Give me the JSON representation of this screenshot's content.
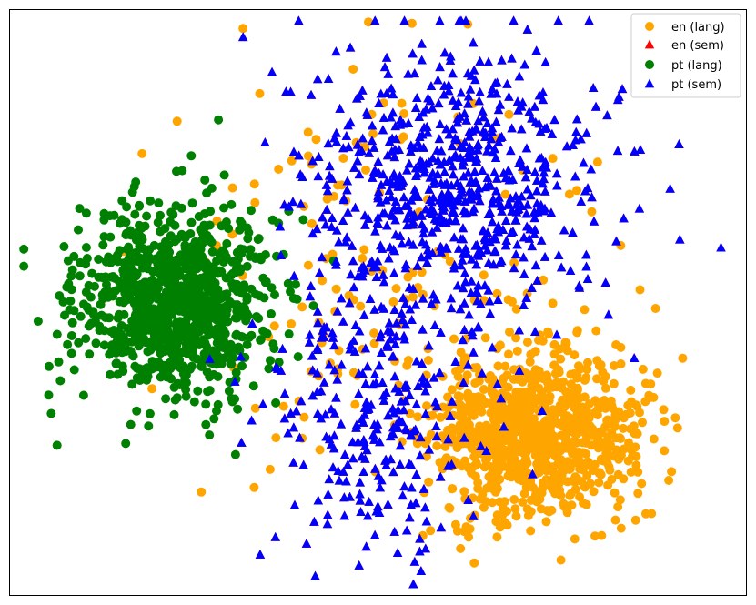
{
  "chart_data": {
    "type": "scatter",
    "title": "",
    "xlabel": "",
    "ylabel": "",
    "axes_ticks": false,
    "grid": false,
    "legend_placement": "top-right",
    "xlim": [
      0,
      100
    ],
    "ylim": [
      0,
      100
    ],
    "series": [
      {
        "name": "en (lang)",
        "marker": "circle",
        "color": "#FFA500",
        "clusters": [
          {
            "cx": 71,
            "cy": 28,
            "sx": 7,
            "sy": 7,
            "n": 950,
            "seed": 11
          },
          {
            "cx": 50,
            "cy": 55,
            "sx": 14,
            "sy": 18,
            "n": 160,
            "seed": 12
          }
        ]
      },
      {
        "name": "en (sem)",
        "marker": "triangle",
        "color": "#FF0000",
        "clusters": [
          {
            "cx": 60,
            "cy": 70,
            "sx": 10,
            "sy": 12,
            "n": 700,
            "seed": 21
          },
          {
            "cx": 49,
            "cy": 32,
            "sx": 7,
            "sy": 12,
            "n": 280,
            "seed": 22
          }
        ]
      },
      {
        "name": "pt (lang)",
        "marker": "circle",
        "color": "#008000",
        "clusters": [
          {
            "cx": 22.5,
            "cy": 50,
            "sx": 6.5,
            "sy": 8,
            "n": 1000,
            "seed": 31
          }
        ]
      },
      {
        "name": "pt (sem)",
        "marker": "triangle",
        "color": "#0000FF",
        "clusters": [
          {
            "cx": 60,
            "cy": 70,
            "sx": 10,
            "sy": 12,
            "n": 700,
            "seed": 21
          },
          {
            "cx": 49,
            "cy": 32,
            "sx": 7,
            "sy": 12,
            "n": 280,
            "seed": 22
          }
        ]
      }
    ]
  }
}
